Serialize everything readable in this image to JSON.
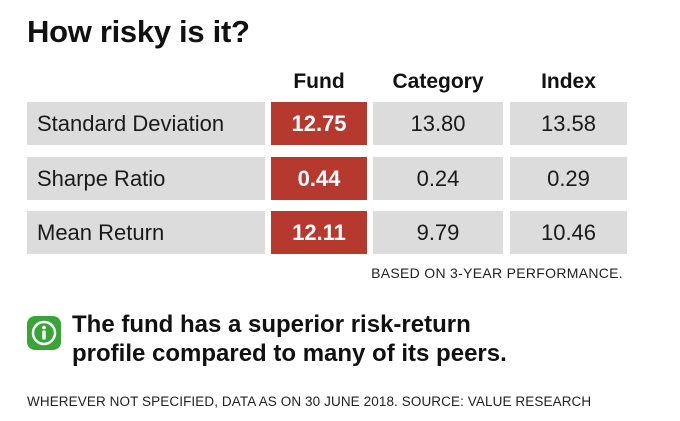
{
  "title": "How risky is it?",
  "columns": {
    "fund": "Fund",
    "category": "Category",
    "index": "Index"
  },
  "rows": [
    {
      "label": "Standard Deviation",
      "fund": "12.75",
      "category": "13.80",
      "index": "13.58"
    },
    {
      "label": "Sharpe Ratio",
      "fund": "0.44",
      "category": "0.24",
      "index": "0.29"
    },
    {
      "label": "Mean Return",
      "fund": "12.11",
      "category": "9.79",
      "index": "10.46"
    }
  ],
  "note": "BASED ON 3-YEAR PERFORMANCE.",
  "info": {
    "icon": "info-icon",
    "line1": "The fund has a superior risk-return",
    "line2": "profile compared to many of its peers."
  },
  "footer": "WHEREVER NOT SPECIFIED, DATA AS ON 30 JUNE 2018. SOURCE: VALUE RESEARCH",
  "colors": {
    "fund_highlight": "#b5392f",
    "cell_background": "#dcdcdc",
    "info_icon": "#3aa43a"
  }
}
